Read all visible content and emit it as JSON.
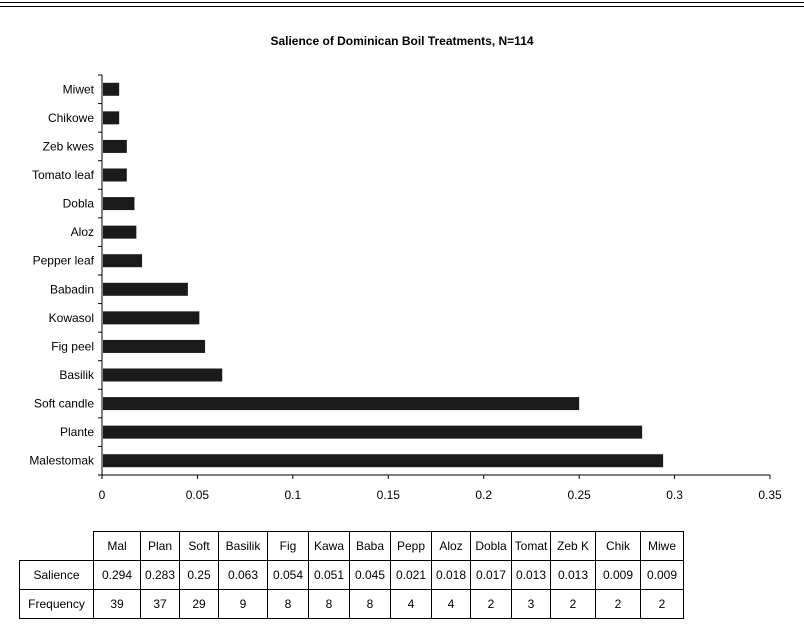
{
  "chart_data": {
    "type": "bar",
    "orientation": "horizontal",
    "title": "Salience of Dominican Boil Treatments, N=114",
    "categories": [
      "Miwet",
      "Chikowe",
      "Zeb kwes",
      "Tomato leaf",
      "Dobla",
      "Aloz",
      "Pepper leaf",
      "Babadin",
      "Kowasol",
      "Fig peel",
      "Basilik",
      "Soft candle",
      "Plante",
      "Malestomak"
    ],
    "values": [
      0.009,
      0.009,
      0.013,
      0.013,
      0.017,
      0.018,
      0.021,
      0.045,
      0.051,
      0.054,
      0.063,
      0.25,
      0.283,
      0.294
    ],
    "xlim": [
      0,
      0.35
    ],
    "xticks": [
      "0",
      "0.05",
      "0.1",
      "0.15",
      "0.2",
      "0.25",
      "0.3",
      "0.35"
    ],
    "bar_color": "#1a1a1a",
    "grid": false,
    "legend": "none"
  },
  "table": {
    "headers": [
      "Mal",
      "Plan",
      "Soft",
      "Basilik",
      "Fig",
      "Kawa",
      "Baba",
      "Pepp",
      "Aloz",
      "Dobla",
      "Tomat",
      "Zeb K",
      "Chik",
      "Miwe"
    ],
    "rows": [
      {
        "label": "Salience",
        "values": [
          "0.294",
          "0.283",
          "0.25",
          "0.063",
          "0.054",
          "0.051",
          "0.045",
          "0.021",
          "0.018",
          "0.017",
          "0.013",
          "0.013",
          "0.009",
          "0.009"
        ]
      },
      {
        "label": "Frequency",
        "values": [
          "39",
          "37",
          "29",
          "9",
          "8",
          "8",
          "8",
          "4",
          "4",
          "2",
          "3",
          "2",
          "2",
          "2"
        ]
      }
    ]
  }
}
